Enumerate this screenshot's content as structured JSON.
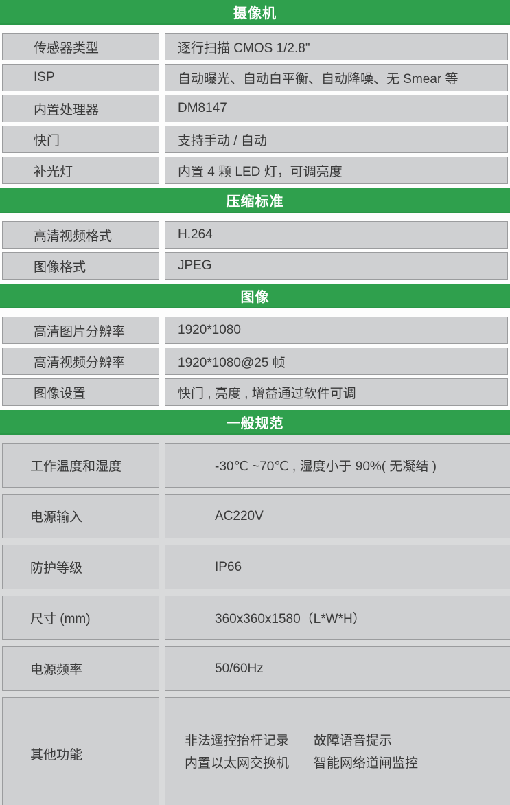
{
  "colors": {
    "header_green": "#2fa04d",
    "header_text": "#ffffff",
    "cell_gray": "#cfd0d2",
    "cell_border": "#9b9c9e",
    "section4_background": "#d9dadb",
    "body_text": "#3a3a3a"
  },
  "sections": [
    {
      "title": "摄像机",
      "rows": [
        {
          "label": "传感器类型",
          "value": "逐行扫描 CMOS 1/2.8\""
        },
        {
          "label": "ISP",
          "value": "自动曝光、自动白平衡、自动降噪、无 Smear 等"
        },
        {
          "label": "内置处理器",
          "value": "DM8147"
        },
        {
          "label": "快门",
          "value": "支持手动 / 自动"
        },
        {
          "label": "补光灯",
          "value": "内置 4 颗 LED 灯，可调亮度"
        }
      ]
    },
    {
      "title": "压缩标准",
      "rows": [
        {
          "label": "高清视频格式",
          "value": "H.264"
        },
        {
          "label": "图像格式",
          "value": "JPEG"
        }
      ]
    },
    {
      "title": "图像",
      "rows": [
        {
          "label": "高清图片分辨率",
          "value": "1920*1080"
        },
        {
          "label": "高清视频分辨率",
          "value": "1920*1080@25 帧"
        },
        {
          "label": "图像设置",
          "value": "快门 , 亮度 , 增益通过软件可调"
        }
      ]
    },
    {
      "title": "一般规范",
      "rows": [
        {
          "label": "工作温度和湿度",
          "value": "-30℃ ~70℃ , 湿度小于 90%( 无凝结 )"
        },
        {
          "label": "电源输入",
          "value": "AC220V"
        },
        {
          "label": "防护等级",
          "value": "IP66"
        },
        {
          "label": "尺寸 (mm)",
          "value": "360x360x1580（L*W*H）"
        },
        {
          "label": "电源频率",
          "value": "50/60Hz"
        },
        {
          "label": "其他功能",
          "value_parts": [
            "非法遥控抬杆记录",
            "故障语音提示",
            "内置以太网交换机",
            "智能网络道闸监控"
          ]
        }
      ]
    }
  ]
}
